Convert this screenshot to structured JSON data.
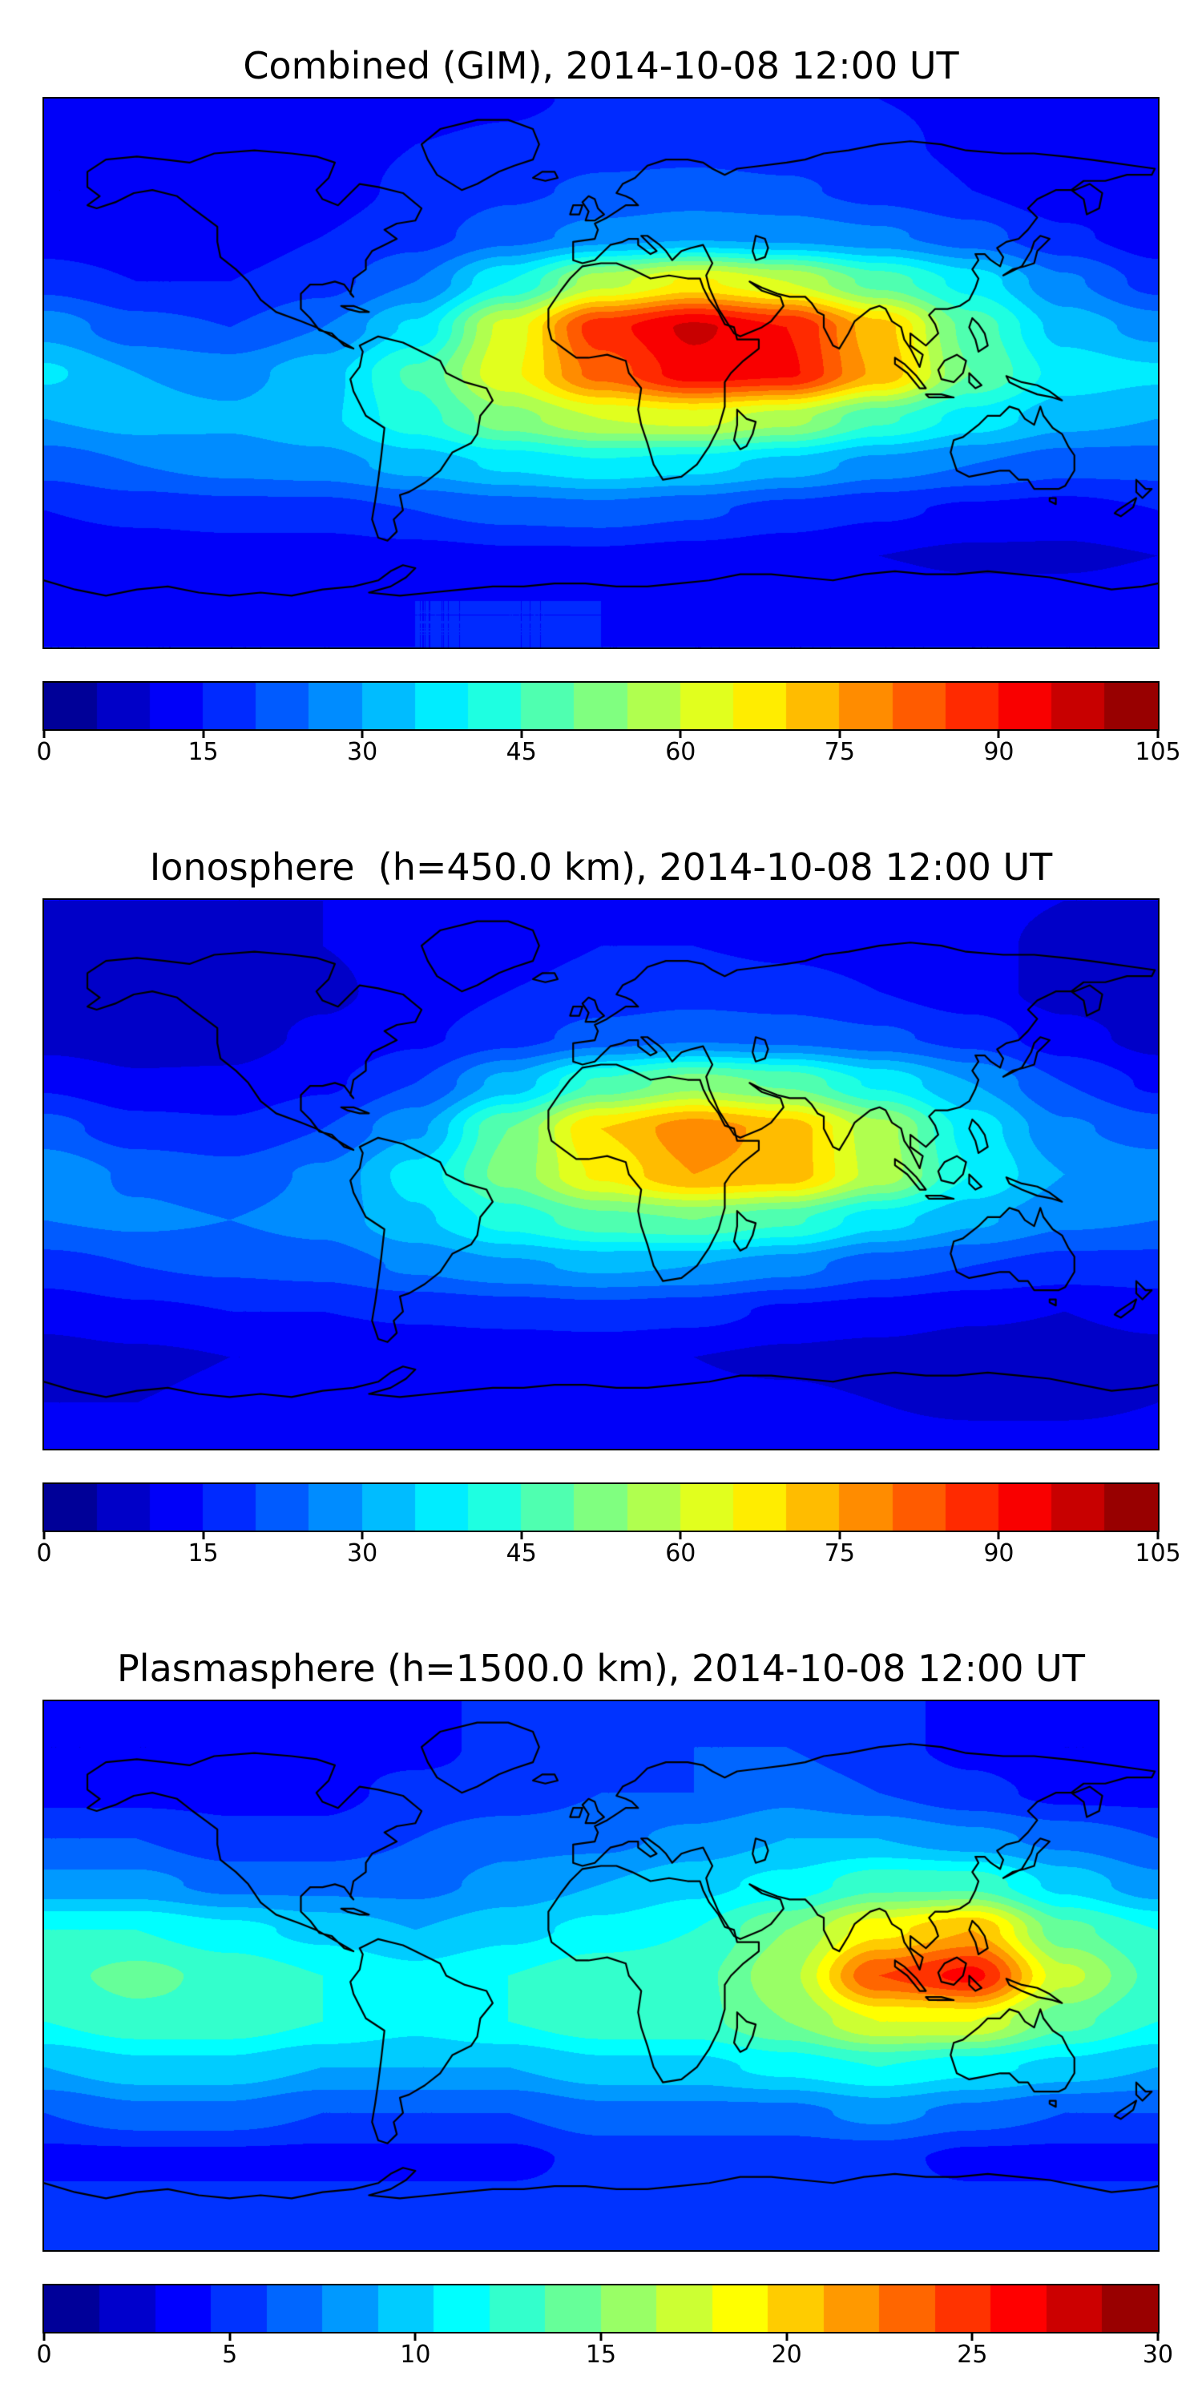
{
  "figure": {
    "background": "#ffffff",
    "colormap": "jet",
    "text_color": "#000000"
  },
  "chart_data": [
    {
      "type": "heatmap",
      "title": "Combined (GIM), 2014-10-08 12:00 UT",
      "projection": "equirectangular",
      "lon_start": -180,
      "lon_step": 30,
      "lat_start": 90,
      "lat_step": -15,
      "vmin": 0,
      "vmax": 105,
      "levels": 21,
      "colormap": "jet",
      "colorbar_orientation": "horizontal",
      "colorbar_ticks": [
        0,
        15,
        30,
        45,
        60,
        75,
        90,
        105
      ],
      "values": [
        [
          14,
          14,
          14,
          13,
          13,
          14,
          16,
          16,
          16,
          15,
          14,
          14,
          14
        ],
        [
          12,
          12,
          12,
          13,
          15,
          16,
          18,
          18,
          17,
          16,
          14,
          12,
          12
        ],
        [
          10,
          10,
          11,
          13,
          16,
          19,
          21,
          22,
          21,
          18,
          15,
          11,
          10
        ],
        [
          12,
          11,
          12,
          15,
          18,
          23,
          27,
          29,
          28,
          26,
          22,
          16,
          12
        ],
        [
          18,
          15,
          15,
          18,
          25,
          40,
          58,
          66,
          60,
          48,
          38,
          26,
          18
        ],
        [
          28,
          22,
          20,
          25,
          36,
          62,
          88,
          96,
          90,
          72,
          48,
          33,
          28
        ],
        [
          36,
          30,
          28,
          33,
          46,
          64,
          82,
          93,
          91,
          74,
          50,
          38,
          36
        ],
        [
          30,
          32,
          31,
          34,
          43,
          53,
          60,
          62,
          57,
          46,
          38,
          32,
          30
        ],
        [
          22,
          25,
          27,
          28,
          32,
          36,
          39,
          37,
          33,
          28,
          25,
          22,
          22
        ],
        [
          15,
          17,
          18,
          18,
          20,
          22,
          23,
          21,
          18,
          16,
          14,
          13,
          15
        ],
        [
          10,
          11,
          12,
          12,
          13,
          14,
          14,
          13,
          12,
          10,
          9,
          9,
          10
        ],
        [
          13,
          13,
          14,
          14,
          15,
          15,
          15,
          14,
          14,
          13,
          12,
          12,
          13
        ],
        [
          15,
          15,
          15,
          15,
          15,
          15,
          15,
          15,
          15,
          15,
          15,
          15,
          15
        ]
      ]
    },
    {
      "type": "heatmap",
      "title": "Ionosphere  (h=450.0 km), 2014-10-08 12:00 UT",
      "projection": "equirectangular",
      "lon_start": -180,
      "lon_step": 30,
      "lat_start": 90,
      "lat_step": -15,
      "vmin": 0,
      "vmax": 105,
      "levels": 21,
      "colormap": "jet",
      "colorbar_orientation": "horizontal",
      "colorbar_ticks": [
        0,
        15,
        30,
        45,
        60,
        75,
        90,
        105
      ],
      "values": [
        [
          10,
          10,
          10,
          10,
          11,
          12,
          13,
          14,
          13,
          12,
          11,
          10,
          10
        ],
        [
          8,
          8,
          9,
          10,
          12,
          13,
          15,
          15,
          14,
          13,
          11,
          9,
          8
        ],
        [
          6,
          6,
          7,
          9,
          12,
          15,
          17,
          18,
          17,
          15,
          12,
          8,
          6
        ],
        [
          8,
          7,
          8,
          11,
          14,
          18,
          22,
          24,
          23,
          21,
          18,
          12,
          8
        ],
        [
          14,
          11,
          11,
          14,
          20,
          32,
          46,
          53,
          49,
          39,
          30,
          20,
          14
        ],
        [
          22,
          17,
          16,
          20,
          29,
          50,
          70,
          78,
          73,
          57,
          38,
          26,
          22
        ],
        [
          29,
          24,
          22,
          26,
          37,
          52,
          66,
          75,
          73,
          58,
          40,
          30,
          29
        ],
        [
          25,
          26,
          25,
          27,
          34,
          42,
          48,
          50,
          46,
          37,
          31,
          26,
          25
        ],
        [
          18,
          20,
          21,
          22,
          26,
          29,
          31,
          30,
          27,
          22,
          20,
          18,
          18
        ],
        [
          12,
          14,
          15,
          15,
          16,
          17,
          18,
          17,
          14,
          13,
          11,
          10,
          12
        ],
        [
          8,
          9,
          10,
          10,
          11,
          11,
          11,
          10,
          9,
          8,
          7,
          7,
          8
        ],
        [
          10,
          10,
          11,
          11,
          12,
          12,
          12,
          11,
          11,
          10,
          9,
          9,
          10
        ],
        [
          12,
          12,
          12,
          12,
          12,
          12,
          12,
          12,
          12,
          12,
          12,
          12,
          12
        ]
      ]
    },
    {
      "type": "heatmap",
      "title": "Plasmasphere (h=1500.0 km), 2014-10-08 12:00 UT",
      "projection": "equirectangular",
      "lon_start": -180,
      "lon_step": 30,
      "lat_start": 90,
      "lat_step": -15,
      "vmin": 0,
      "vmax": 30,
      "levels": 20,
      "colormap": "jet",
      "colorbar_orientation": "horizontal",
      "colorbar_ticks": [
        0,
        5,
        10,
        15,
        20,
        25,
        30
      ],
      "values": [
        [
          4,
          4,
          4,
          4,
          4,
          5,
          5,
          5,
          5,
          5,
          4,
          4,
          4
        ],
        [
          3,
          3,
          3,
          4,
          4,
          5,
          5,
          6,
          6,
          5,
          4,
          3,
          3
        ],
        [
          4,
          4,
          4,
          4,
          5,
          5,
          6,
          6,
          7,
          6,
          5,
          4,
          4
        ],
        [
          6,
          6,
          5,
          5,
          6,
          7,
          7,
          8,
          9,
          9,
          8,
          7,
          6
        ],
        [
          8,
          8,
          7,
          7,
          7,
          8,
          9,
          10,
          11,
          13,
          13,
          10,
          8
        ],
        [
          12,
          12,
          11,
          10,
          9,
          10,
          11,
          12,
          15,
          19,
          21,
          14,
          12
        ],
        [
          13,
          14,
          13,
          12,
          11,
          12,
          13,
          13,
          16,
          24,
          26,
          17,
          13
        ],
        [
          12,
          13,
          13,
          12,
          11,
          12,
          13,
          13,
          15,
          18,
          18,
          14,
          12
        ],
        [
          9,
          10,
          10,
          9,
          9,
          9,
          10,
          10,
          11,
          12,
          11,
          10,
          9
        ],
        [
          6,
          7,
          7,
          6,
          6,
          6,
          7,
          7,
          7,
          8,
          7,
          6,
          6
        ],
        [
          4,
          4,
          4,
          4,
          4,
          4,
          5,
          5,
          5,
          5,
          4,
          4,
          4
        ],
        [
          5,
          5,
          5,
          5,
          5,
          5,
          5,
          5,
          5,
          5,
          5,
          5,
          5
        ],
        [
          5,
          5,
          5,
          5,
          5,
          5,
          5,
          5,
          5,
          5,
          5,
          5,
          5
        ]
      ]
    }
  ]
}
